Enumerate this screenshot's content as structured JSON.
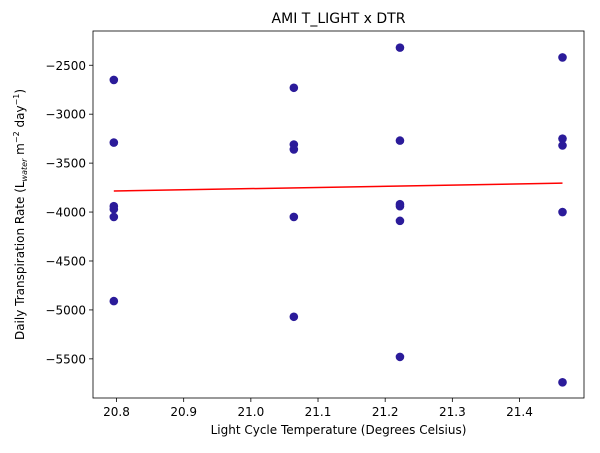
{
  "chart_data": {
    "type": "scatter",
    "title": "AMI T_LIGHT x DTR",
    "xlabel": "Light Cycle Temperature (Degrees Celsius)",
    "ylabel_main": "Daily Transpiration Rate (L",
    "ylabel_sub": "water",
    "ylabel_mid": " m",
    "ylabel_sup1": "−2",
    "ylabel_mid2": " day",
    "ylabel_sup2": "−1",
    "ylabel_end": ")",
    "xlim": [
      20.765,
      21.496
    ],
    "ylim": [
      -5900,
      -2150
    ],
    "xticks": [
      20.8,
      20.9,
      21.0,
      21.1,
      21.2,
      21.3,
      21.4
    ],
    "xtick_labels": [
      "20.8",
      "20.9",
      "21.0",
      "21.1",
      "21.2",
      "21.3",
      "21.4"
    ],
    "yticks": [
      -5500,
      -5000,
      -4500,
      -4000,
      -3500,
      -3000,
      -2500
    ],
    "ytick_labels": [
      "−5500",
      "−5000",
      "−4500",
      "−4000",
      "−3500",
      "−3000",
      "−2500"
    ],
    "point_color": "#2b1b9a",
    "line_color": "#ff0000",
    "points": [
      {
        "x": 20.796,
        "y": -2650
      },
      {
        "x": 20.796,
        "y": -3290
      },
      {
        "x": 20.796,
        "y": -3940
      },
      {
        "x": 20.796,
        "y": -3970
      },
      {
        "x": 20.796,
        "y": -4050
      },
      {
        "x": 20.796,
        "y": -4910
      },
      {
        "x": 21.064,
        "y": -2730
      },
      {
        "x": 21.064,
        "y": -3310
      },
      {
        "x": 21.064,
        "y": -3360
      },
      {
        "x": 21.064,
        "y": -4050
      },
      {
        "x": 21.064,
        "y": -5070
      },
      {
        "x": 21.222,
        "y": -2320
      },
      {
        "x": 21.222,
        "y": -3270
      },
      {
        "x": 21.222,
        "y": -3920
      },
      {
        "x": 21.222,
        "y": -3940
      },
      {
        "x": 21.222,
        "y": -4090
      },
      {
        "x": 21.222,
        "y": -5480
      },
      {
        "x": 21.464,
        "y": -2420
      },
      {
        "x": 21.464,
        "y": -3250
      },
      {
        "x": 21.464,
        "y": -3320
      },
      {
        "x": 21.464,
        "y": -4000
      },
      {
        "x": 21.464,
        "y": -5740
      }
    ],
    "trendline": {
      "x": [
        20.796,
        21.464
      ],
      "y": [
        -3785,
        -3705
      ]
    },
    "grid": false,
    "legend": "none"
  }
}
